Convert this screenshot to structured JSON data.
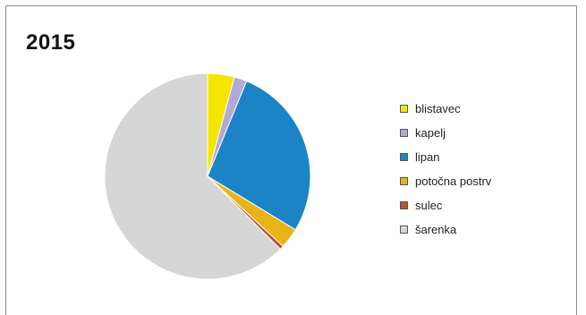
{
  "chart_data": {
    "type": "pie",
    "title": "2015",
    "legend_position": "right",
    "start_angle_deg": 0,
    "direction": "clockwise",
    "slices": [
      {
        "label": "blistavec",
        "value": 4.2,
        "color": "#f4e500"
      },
      {
        "label": "kapelj",
        "value": 2.0,
        "color": "#b3a9d6"
      },
      {
        "label": "lipan",
        "value": 27.5,
        "color": "#1c84c6"
      },
      {
        "label": "potočna postrv",
        "value": 3.2,
        "color": "#e9b31a"
      },
      {
        "label": "sulec",
        "value": 0.6,
        "color": "#b8542a"
      },
      {
        "label": "šarenka",
        "value": 62.5,
        "color": "#d6d6d6"
      }
    ]
  }
}
